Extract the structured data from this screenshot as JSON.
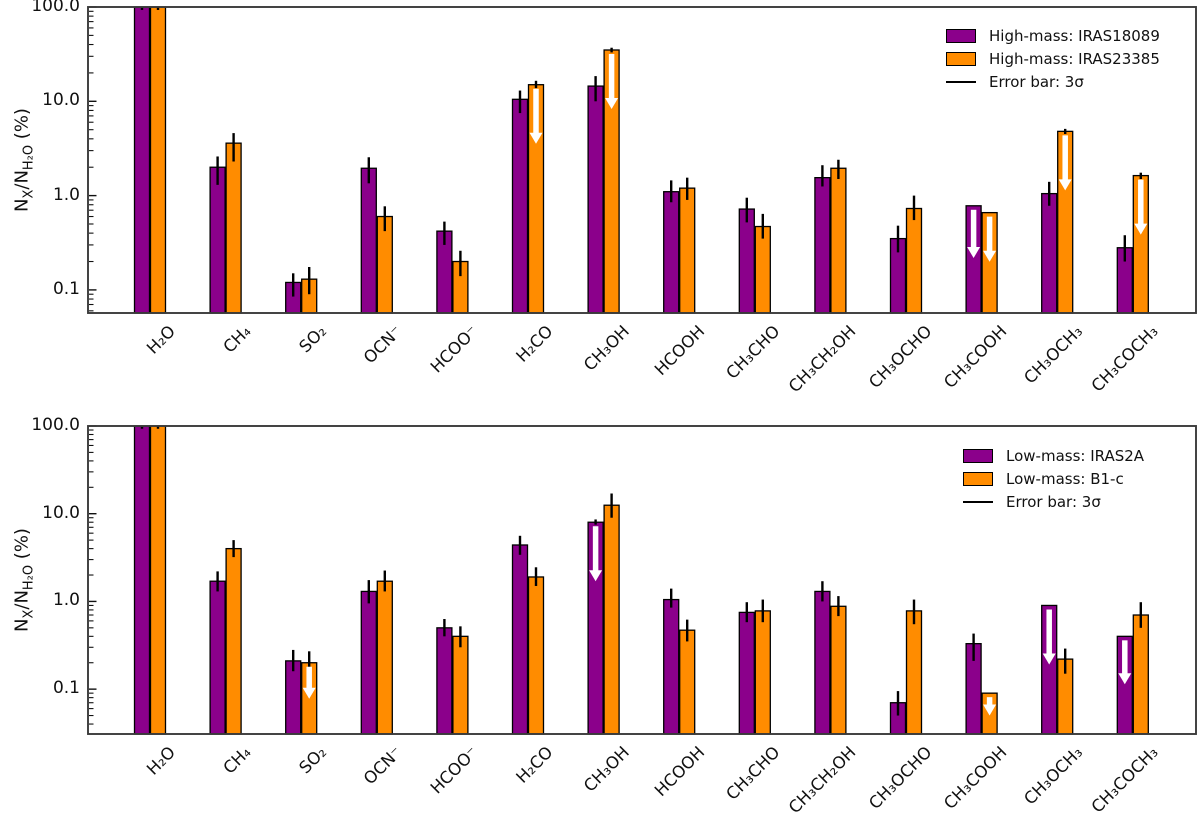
{
  "figure": {
    "background": "#ffffff",
    "purple": "#8B008B",
    "orange": "#FF8C00",
    "error_color": "#000000",
    "spine_color": "#3a3a3a",
    "ylabel_html": "N<sub>X</sub>/N<sub>H₂O</sub> (%)",
    "ylabel_text": "NX/NH2O (%)"
  },
  "chart_data": [
    {
      "type": "bar",
      "panel": "top",
      "yscale": "log",
      "ylabel": "NX/NH2O (%)",
      "ylim": [
        0.0569,
        100
      ],
      "ytick_values": [
        100,
        10,
        1,
        0.1
      ],
      "ytick_labels": [
        "100.0",
        "10.0",
        "1.0",
        "0.1"
      ],
      "grid": false,
      "legend_position": "upper right",
      "legend_error_label": "Error bar: 3σ",
      "categories": [
        "H₂O",
        "CH₄",
        "SO₂",
        "OCN⁻",
        "HCOO⁻",
        "H₂CO",
        "CH₃OH",
        "HCOOH",
        "CH₃CHO",
        "CH₃CH₂OH",
        "CH₃OCHO",
        "CH₃COOH",
        "CH₃OCH₃",
        "CH₃COCH₃"
      ],
      "series": [
        {
          "name": "High-mass: IRAS18089",
          "color": "#8B008B",
          "values": [
            100,
            2.0,
            0.12,
            1.95,
            0.42,
            10.5,
            14.5,
            1.1,
            0.72,
            1.55,
            0.35,
            0.78,
            1.05,
            0.28
          ],
          "err_lo": [
            93,
            1.3,
            0.085,
            1.35,
            0.3,
            7.5,
            10,
            0.85,
            0.52,
            1.25,
            0.25,
            null,
            0.78,
            0.2
          ],
          "err_hi": [
            107,
            2.6,
            0.15,
            2.55,
            0.53,
            13,
            18.5,
            1.45,
            0.95,
            2.1,
            0.48,
            null,
            1.4,
            0.38
          ],
          "upper_limits": [
            false,
            false,
            false,
            false,
            false,
            false,
            false,
            false,
            false,
            false,
            false,
            true,
            false,
            false
          ]
        },
        {
          "name": "High-mass: IRAS23385",
          "color": "#FF8C00",
          "values": [
            100,
            3.6,
            0.13,
            0.6,
            0.2,
            15,
            35,
            1.2,
            0.47,
            1.95,
            0.73,
            0.66,
            4.8,
            1.63
          ],
          "err_lo": [
            93,
            2.3,
            0.09,
            0.42,
            0.14,
            13.8,
            33,
            0.9,
            0.35,
            1.5,
            0.55,
            null,
            4.5,
            1.5
          ],
          "err_hi": [
            107,
            4.6,
            0.175,
            0.77,
            0.26,
            16.5,
            37,
            1.55,
            0.64,
            2.4,
            1.0,
            null,
            5.1,
            1.75
          ],
          "upper_limits": [
            false,
            false,
            false,
            false,
            false,
            true,
            true,
            false,
            false,
            false,
            false,
            true,
            true,
            true
          ]
        }
      ]
    },
    {
      "type": "bar",
      "panel": "bottom",
      "yscale": "log",
      "ylabel": "NX/NH2O (%)",
      "ylim": [
        0.0308,
        100
      ],
      "ytick_values": [
        100,
        10,
        1,
        0.1
      ],
      "ytick_labels": [
        "100.0",
        "10.0",
        "1.0",
        "0.1"
      ],
      "grid": false,
      "legend_position": "upper right",
      "legend_error_label": "Error bar: 3σ",
      "categories": [
        "H₂O",
        "CH₄",
        "SO₂",
        "OCN⁻",
        "HCOO⁻",
        "H₂CO",
        "CH₃OH",
        "HCOOH",
        "CH₃CHO",
        "CH₃CH₂OH",
        "CH₃OCHO",
        "CH₃COOH",
        "CH₃OCH₃",
        "CH₃COCH₃"
      ],
      "series": [
        {
          "name": "Low-mass: IRAS2A",
          "color": "#8B008B",
          "values": [
            100,
            1.7,
            0.21,
            1.3,
            0.5,
            4.4,
            8.0,
            1.05,
            0.75,
            1.3,
            0.07,
            0.33,
            0.9,
            0.4
          ],
          "err_lo": [
            93,
            1.3,
            0.16,
            0.95,
            0.4,
            3.4,
            7.5,
            0.85,
            0.58,
            1.0,
            0.05,
            0.21,
            null,
            null
          ],
          "err_hi": [
            107,
            2.2,
            0.28,
            1.75,
            0.63,
            5.6,
            8.6,
            1.4,
            0.98,
            1.7,
            0.095,
            0.43,
            null,
            null
          ],
          "upper_limits": [
            false,
            false,
            false,
            false,
            false,
            false,
            true,
            false,
            false,
            false,
            false,
            false,
            true,
            true
          ]
        },
        {
          "name": "Low-mass: B1-c",
          "color": "#FF8C00",
          "values": [
            100,
            4.0,
            0.2,
            1.7,
            0.4,
            1.9,
            12.5,
            0.47,
            0.78,
            0.88,
            0.78,
            0.09,
            0.22,
            0.7
          ],
          "err_lo": [
            93,
            3.2,
            0.13,
            1.3,
            0.3,
            1.5,
            9.0,
            0.35,
            0.58,
            0.68,
            0.55,
            null,
            0.15,
            0.5
          ],
          "err_hi": [
            107,
            5.0,
            0.27,
            2.25,
            0.52,
            2.45,
            17,
            0.62,
            1.05,
            1.15,
            1.05,
            null,
            0.29,
            0.98
          ],
          "upper_limits": [
            false,
            false,
            true,
            false,
            false,
            false,
            false,
            false,
            false,
            false,
            false,
            true,
            false,
            false
          ]
        }
      ]
    }
  ]
}
